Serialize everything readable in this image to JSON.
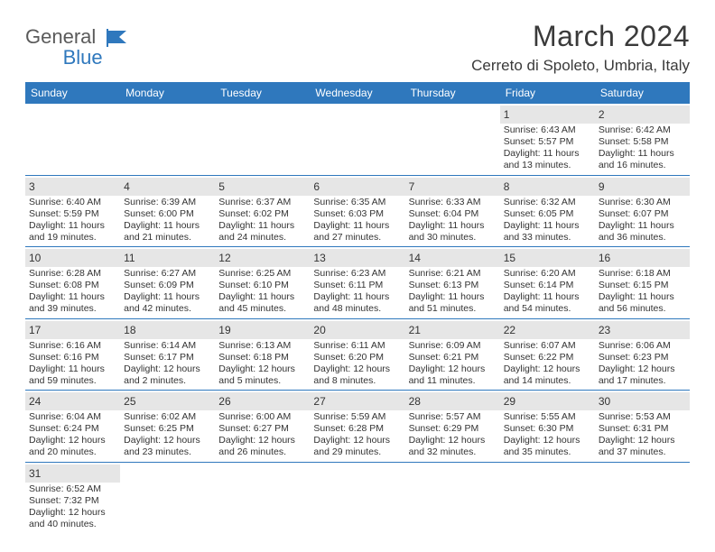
{
  "brand": {
    "g": "General",
    "b": "Blue"
  },
  "title": "March 2024",
  "location": "Cerreto di Spoleto, Umbria, Italy",
  "weekdays": [
    "Sunday",
    "Monday",
    "Tuesday",
    "Wednesday",
    "Thursday",
    "Friday",
    "Saturday"
  ],
  "colors": {
    "header_bg": "#2f78bd",
    "daynum_bg": "#e6e6e6",
    "text": "#333333",
    "week_border": "#2f78bd"
  },
  "weeks": [
    [
      {
        "n": "",
        "empty": true
      },
      {
        "n": "",
        "empty": true
      },
      {
        "n": "",
        "empty": true
      },
      {
        "n": "",
        "empty": true
      },
      {
        "n": "",
        "empty": true
      },
      {
        "n": "1",
        "l1": "Sunrise: 6:43 AM",
        "l2": "Sunset: 5:57 PM",
        "l3": "Daylight: 11 hours",
        "l4": "and 13 minutes."
      },
      {
        "n": "2",
        "l1": "Sunrise: 6:42 AM",
        "l2": "Sunset: 5:58 PM",
        "l3": "Daylight: 11 hours",
        "l4": "and 16 minutes."
      }
    ],
    [
      {
        "n": "3",
        "l1": "Sunrise: 6:40 AM",
        "l2": "Sunset: 5:59 PM",
        "l3": "Daylight: 11 hours",
        "l4": "and 19 minutes."
      },
      {
        "n": "4",
        "l1": "Sunrise: 6:39 AM",
        "l2": "Sunset: 6:00 PM",
        "l3": "Daylight: 11 hours",
        "l4": "and 21 minutes."
      },
      {
        "n": "5",
        "l1": "Sunrise: 6:37 AM",
        "l2": "Sunset: 6:02 PM",
        "l3": "Daylight: 11 hours",
        "l4": "and 24 minutes."
      },
      {
        "n": "6",
        "l1": "Sunrise: 6:35 AM",
        "l2": "Sunset: 6:03 PM",
        "l3": "Daylight: 11 hours",
        "l4": "and 27 minutes."
      },
      {
        "n": "7",
        "l1": "Sunrise: 6:33 AM",
        "l2": "Sunset: 6:04 PM",
        "l3": "Daylight: 11 hours",
        "l4": "and 30 minutes."
      },
      {
        "n": "8",
        "l1": "Sunrise: 6:32 AM",
        "l2": "Sunset: 6:05 PM",
        "l3": "Daylight: 11 hours",
        "l4": "and 33 minutes."
      },
      {
        "n": "9",
        "l1": "Sunrise: 6:30 AM",
        "l2": "Sunset: 6:07 PM",
        "l3": "Daylight: 11 hours",
        "l4": "and 36 minutes."
      }
    ],
    [
      {
        "n": "10",
        "l1": "Sunrise: 6:28 AM",
        "l2": "Sunset: 6:08 PM",
        "l3": "Daylight: 11 hours",
        "l4": "and 39 minutes."
      },
      {
        "n": "11",
        "l1": "Sunrise: 6:27 AM",
        "l2": "Sunset: 6:09 PM",
        "l3": "Daylight: 11 hours",
        "l4": "and 42 minutes."
      },
      {
        "n": "12",
        "l1": "Sunrise: 6:25 AM",
        "l2": "Sunset: 6:10 PM",
        "l3": "Daylight: 11 hours",
        "l4": "and 45 minutes."
      },
      {
        "n": "13",
        "l1": "Sunrise: 6:23 AM",
        "l2": "Sunset: 6:11 PM",
        "l3": "Daylight: 11 hours",
        "l4": "and 48 minutes."
      },
      {
        "n": "14",
        "l1": "Sunrise: 6:21 AM",
        "l2": "Sunset: 6:13 PM",
        "l3": "Daylight: 11 hours",
        "l4": "and 51 minutes."
      },
      {
        "n": "15",
        "l1": "Sunrise: 6:20 AM",
        "l2": "Sunset: 6:14 PM",
        "l3": "Daylight: 11 hours",
        "l4": "and 54 minutes."
      },
      {
        "n": "16",
        "l1": "Sunrise: 6:18 AM",
        "l2": "Sunset: 6:15 PM",
        "l3": "Daylight: 11 hours",
        "l4": "and 56 minutes."
      }
    ],
    [
      {
        "n": "17",
        "l1": "Sunrise: 6:16 AM",
        "l2": "Sunset: 6:16 PM",
        "l3": "Daylight: 11 hours",
        "l4": "and 59 minutes."
      },
      {
        "n": "18",
        "l1": "Sunrise: 6:14 AM",
        "l2": "Sunset: 6:17 PM",
        "l3": "Daylight: 12 hours",
        "l4": "and 2 minutes."
      },
      {
        "n": "19",
        "l1": "Sunrise: 6:13 AM",
        "l2": "Sunset: 6:18 PM",
        "l3": "Daylight: 12 hours",
        "l4": "and 5 minutes."
      },
      {
        "n": "20",
        "l1": "Sunrise: 6:11 AM",
        "l2": "Sunset: 6:20 PM",
        "l3": "Daylight: 12 hours",
        "l4": "and 8 minutes."
      },
      {
        "n": "21",
        "l1": "Sunrise: 6:09 AM",
        "l2": "Sunset: 6:21 PM",
        "l3": "Daylight: 12 hours",
        "l4": "and 11 minutes."
      },
      {
        "n": "22",
        "l1": "Sunrise: 6:07 AM",
        "l2": "Sunset: 6:22 PM",
        "l3": "Daylight: 12 hours",
        "l4": "and 14 minutes."
      },
      {
        "n": "23",
        "l1": "Sunrise: 6:06 AM",
        "l2": "Sunset: 6:23 PM",
        "l3": "Daylight: 12 hours",
        "l4": "and 17 minutes."
      }
    ],
    [
      {
        "n": "24",
        "l1": "Sunrise: 6:04 AM",
        "l2": "Sunset: 6:24 PM",
        "l3": "Daylight: 12 hours",
        "l4": "and 20 minutes."
      },
      {
        "n": "25",
        "l1": "Sunrise: 6:02 AM",
        "l2": "Sunset: 6:25 PM",
        "l3": "Daylight: 12 hours",
        "l4": "and 23 minutes."
      },
      {
        "n": "26",
        "l1": "Sunrise: 6:00 AM",
        "l2": "Sunset: 6:27 PM",
        "l3": "Daylight: 12 hours",
        "l4": "and 26 minutes."
      },
      {
        "n": "27",
        "l1": "Sunrise: 5:59 AM",
        "l2": "Sunset: 6:28 PM",
        "l3": "Daylight: 12 hours",
        "l4": "and 29 minutes."
      },
      {
        "n": "28",
        "l1": "Sunrise: 5:57 AM",
        "l2": "Sunset: 6:29 PM",
        "l3": "Daylight: 12 hours",
        "l4": "and 32 minutes."
      },
      {
        "n": "29",
        "l1": "Sunrise: 5:55 AM",
        "l2": "Sunset: 6:30 PM",
        "l3": "Daylight: 12 hours",
        "l4": "and 35 minutes."
      },
      {
        "n": "30",
        "l1": "Sunrise: 5:53 AM",
        "l2": "Sunset: 6:31 PM",
        "l3": "Daylight: 12 hours",
        "l4": "and 37 minutes."
      }
    ],
    [
      {
        "n": "31",
        "l1": "Sunrise: 6:52 AM",
        "l2": "Sunset: 7:32 PM",
        "l3": "Daylight: 12 hours",
        "l4": "and 40 minutes."
      },
      {
        "n": "",
        "empty": true
      },
      {
        "n": "",
        "empty": true
      },
      {
        "n": "",
        "empty": true
      },
      {
        "n": "",
        "empty": true
      },
      {
        "n": "",
        "empty": true
      },
      {
        "n": "",
        "empty": true
      }
    ]
  ]
}
